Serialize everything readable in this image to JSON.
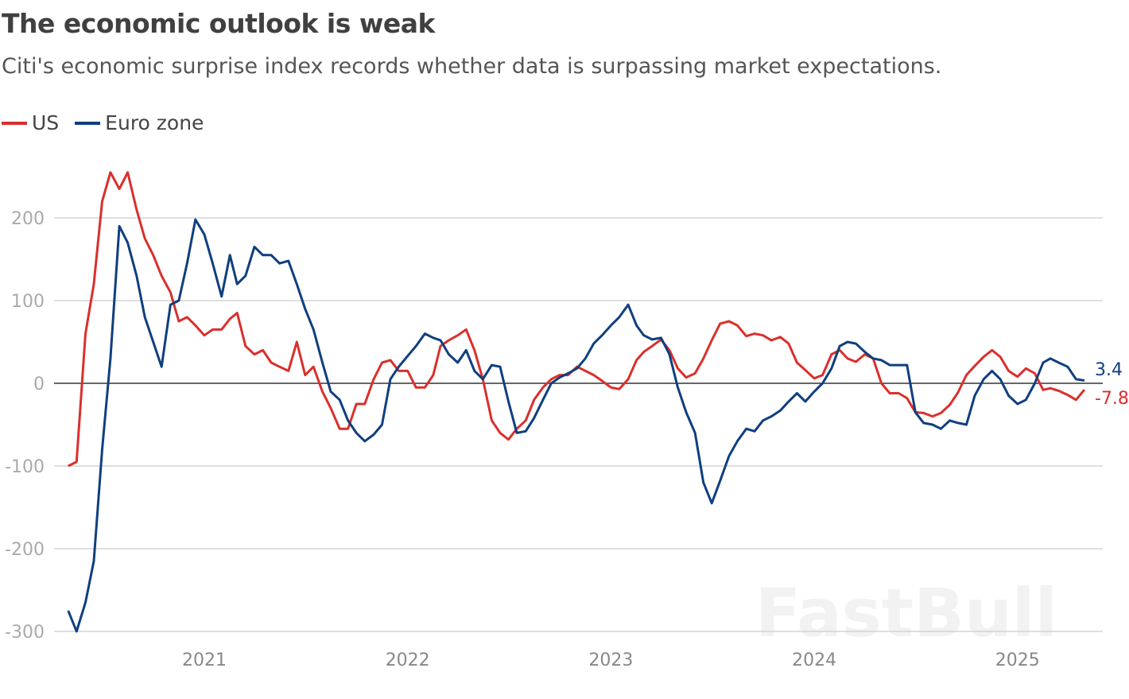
{
  "chart_data": {
    "type": "line",
    "title": "The economic outlook is weak",
    "subtitle": "Citi's economic surprise index records whether data is surpassing market expectations.",
    "xlabel": "",
    "ylabel": "",
    "ylim": [
      -300,
      270
    ],
    "yticks": [
      200,
      100,
      0,
      -100,
      -200,
      -300
    ],
    "xticks": [
      "2021",
      "2022",
      "2023",
      "2024",
      "2025"
    ],
    "xlim": [
      "2020-05-01",
      "2025-05-06"
    ],
    "grid": true,
    "legend_position": "top-left",
    "watermark": "FastBull",
    "x": [
      "2020-05-01",
      "2020-05-16",
      "2020-06-01",
      "2020-06-16",
      "2020-07-01",
      "2020-07-16",
      "2020-08-01",
      "2020-08-16",
      "2020-09-01",
      "2020-09-16",
      "2020-10-01",
      "2020-10-16",
      "2020-11-01",
      "2020-11-16",
      "2020-12-01",
      "2020-12-16",
      "2021-01-01",
      "2021-01-16",
      "2021-02-01",
      "2021-02-16",
      "2021-03-01",
      "2021-03-16",
      "2021-04-01",
      "2021-04-16",
      "2021-05-01",
      "2021-05-16",
      "2021-06-01",
      "2021-06-16",
      "2021-07-01",
      "2021-07-16",
      "2021-08-01",
      "2021-08-16",
      "2021-09-01",
      "2021-09-16",
      "2021-10-01",
      "2021-10-16",
      "2021-11-01",
      "2021-11-16",
      "2021-12-01",
      "2021-12-16",
      "2022-01-01",
      "2022-01-16",
      "2022-02-01",
      "2022-02-16",
      "2022-03-01",
      "2022-03-16",
      "2022-04-01",
      "2022-04-16",
      "2022-05-01",
      "2022-05-16",
      "2022-06-01",
      "2022-06-16",
      "2022-07-01",
      "2022-07-16",
      "2022-08-01",
      "2022-08-16",
      "2022-09-01",
      "2022-09-16",
      "2022-10-01",
      "2022-10-16",
      "2022-11-01",
      "2022-11-16",
      "2022-12-01",
      "2022-12-16",
      "2023-01-01",
      "2023-01-16",
      "2023-02-01",
      "2023-02-16",
      "2023-03-01",
      "2023-03-16",
      "2023-04-01",
      "2023-04-16",
      "2023-05-01",
      "2023-05-16",
      "2023-06-01",
      "2023-06-16",
      "2023-07-01",
      "2023-07-16",
      "2023-08-01",
      "2023-08-16",
      "2023-09-01",
      "2023-09-16",
      "2023-10-01",
      "2023-10-16",
      "2023-11-01",
      "2023-11-16",
      "2023-12-01",
      "2023-12-16",
      "2024-01-01",
      "2024-01-16",
      "2024-02-01",
      "2024-02-16",
      "2024-03-01",
      "2024-03-16",
      "2024-04-01",
      "2024-04-16",
      "2024-05-01",
      "2024-05-16",
      "2024-06-01",
      "2024-06-16",
      "2024-07-01",
      "2024-07-16",
      "2024-08-01",
      "2024-08-16",
      "2024-09-01",
      "2024-09-16",
      "2024-10-01",
      "2024-10-16",
      "2024-11-01",
      "2024-11-16",
      "2024-12-01",
      "2024-12-16",
      "2025-01-01",
      "2025-01-16",
      "2025-02-01",
      "2025-02-16",
      "2025-03-01",
      "2025-03-16",
      "2025-04-01",
      "2025-04-16",
      "2025-05-01"
    ],
    "series": [
      {
        "name": "US",
        "color": "#d9302c",
        "last_label": "-7.8",
        "values": [
          -100,
          -95,
          60,
          120,
          220,
          255,
          235,
          255,
          210,
          175,
          155,
          130,
          110,
          75,
          80,
          70,
          58,
          65,
          65,
          78,
          85,
          45,
          35,
          40,
          25,
          20,
          15,
          50,
          10,
          20,
          -10,
          -30,
          -55,
          -55,
          -25,
          -25,
          5,
          25,
          28,
          15,
          15,
          -5,
          -5,
          10,
          45,
          52,
          58,
          65,
          40,
          5,
          -45,
          -60,
          -68,
          -55,
          -45,
          -20,
          -5,
          5,
          10,
          10,
          20,
          15,
          10,
          3,
          -5,
          -7,
          5,
          28,
          38,
          45,
          53,
          40,
          18,
          7,
          12,
          30,
          52,
          72,
          75,
          70,
          57,
          60,
          58,
          52,
          56,
          48,
          25,
          16,
          6,
          10,
          35,
          40,
          30,
          26,
          35,
          30,
          0,
          -12,
          -12,
          -18,
          -35,
          -36,
          -40,
          -36,
          -26,
          -11,
          10,
          21,
          32,
          40,
          32,
          15,
          8,
          18,
          12,
          -8,
          -6,
          -9,
          -14,
          -20,
          -7.8
        ]
      },
      {
        "name": "Euro zone",
        "color": "#0f3f7f",
        "last_label": "3.4",
        "values": [
          -275,
          -300,
          -265,
          -215,
          -80,
          30,
          190,
          170,
          130,
          80,
          50,
          20,
          95,
          100,
          145,
          198,
          180,
          145,
          105,
          155,
          120,
          130,
          165,
          155,
          155,
          145,
          148,
          120,
          90,
          65,
          25,
          -10,
          -20,
          -45,
          -60,
          -70,
          -62,
          -50,
          5,
          20,
          33,
          45,
          60,
          55,
          52,
          35,
          25,
          40,
          15,
          5,
          22,
          20,
          -22,
          -60,
          -58,
          -42,
          -20,
          0,
          7,
          12,
          18,
          30,
          48,
          58,
          70,
          80,
          95,
          70,
          58,
          53,
          55,
          35,
          -5,
          -35,
          -60,
          -120,
          -145,
          -118,
          -88,
          -70,
          -55,
          -58,
          -45,
          -40,
          -33,
          -22,
          -12,
          -22,
          -10,
          0,
          18,
          45,
          50,
          48,
          38,
          30,
          28,
          22,
          22,
          22,
          -35,
          -48,
          -50,
          -55,
          -45,
          -48,
          -50,
          -15,
          5,
          15,
          5,
          -15,
          -25,
          -20,
          0,
          25,
          30,
          25,
          20,
          5,
          3.4
        ]
      }
    ]
  }
}
